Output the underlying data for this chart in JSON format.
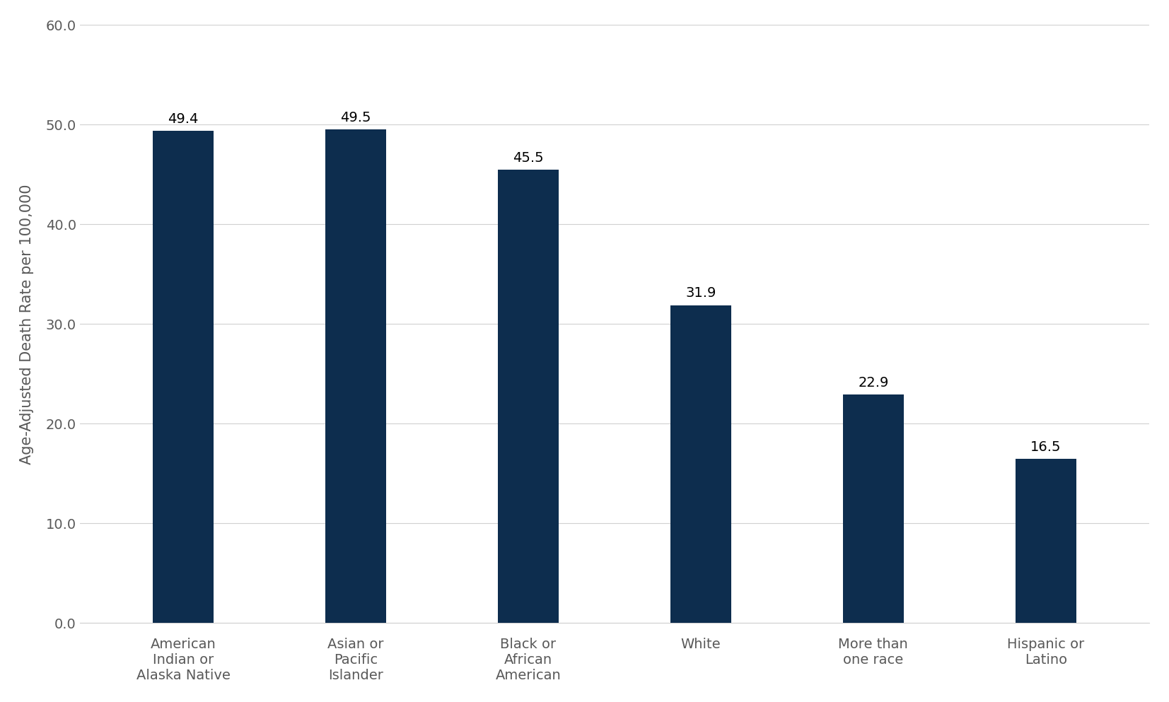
{
  "categories": [
    "American\nIndian or\nAlaska Native",
    "Asian or\nPacific\nIslander",
    "Black or\nAfrican\nAmerican",
    "White",
    "More than\none race",
    "Hispanic or\nLatino"
  ],
  "values": [
    49.4,
    49.5,
    45.5,
    31.9,
    22.9,
    16.5
  ],
  "bar_color": "#0d2d4e",
  "ylabel": "Age-Adjusted Death Rate per 100,000",
  "ylim": [
    0,
    60
  ],
  "yticks": [
    0.0,
    10.0,
    20.0,
    30.0,
    40.0,
    50.0,
    60.0
  ],
  "bar_width": 0.35,
  "label_fontsize": 14,
  "ylabel_fontsize": 15,
  "tick_fontsize": 14,
  "annotation_fontsize": 14,
  "tick_color": "#595959",
  "background_color": "#ffffff",
  "grid_color": "#d0d0d0"
}
